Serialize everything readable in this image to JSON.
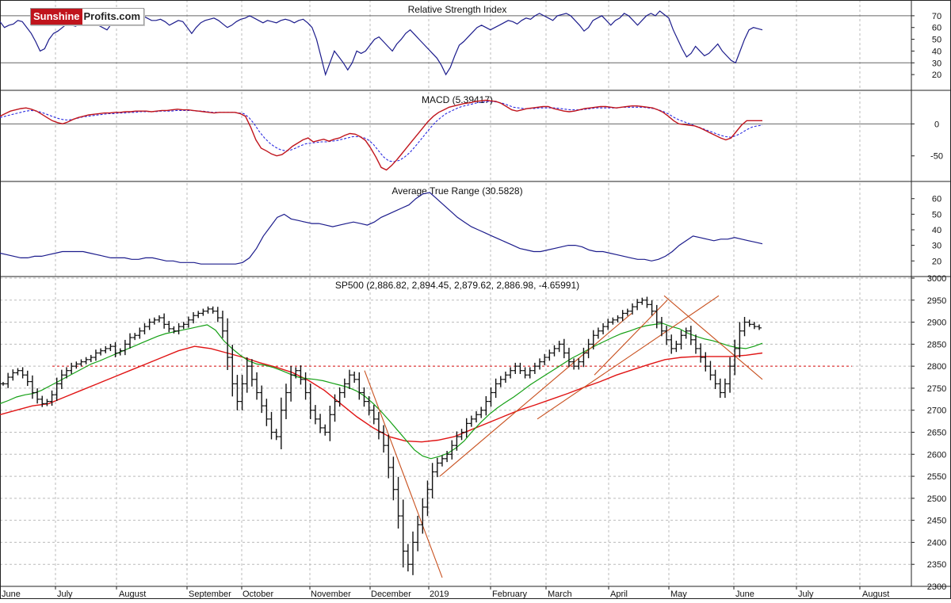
{
  "logo": {
    "part1": "Sunshine",
    "part2": "Profits.com"
  },
  "colors": {
    "price_bar": "#111111",
    "rsi_line": "#1c1c8c",
    "macd_line": "#c0141c",
    "macd_signal": "#2a2ae0",
    "atr_line": "#1c1c8c",
    "ma_fast": "#14a014",
    "ma_slow": "#e01414",
    "trendline": "#c8501e",
    "grid": "#bbbbbb"
  },
  "x_axis": {
    "labels": [
      "June",
      "July",
      "August",
      "September",
      "October",
      "November",
      "December",
      "2019",
      "February",
      "March",
      "April",
      "May",
      "June",
      "July",
      "August"
    ]
  },
  "chart_data": [
    {
      "type": "line",
      "title": "Relative Strength Index",
      "y_ticks": [
        20,
        30,
        40,
        50,
        60,
        70
      ],
      "ylim": [
        12,
        78
      ],
      "reference_lines": [
        30,
        70
      ],
      "grid": true,
      "series": [
        {
          "values": [
            65,
            60,
            62,
            63,
            66,
            65,
            60,
            55,
            48,
            40,
            42,
            50,
            55,
            57,
            60,
            63,
            62,
            61,
            65,
            68,
            66,
            64,
            62,
            60,
            58,
            63,
            66,
            65,
            62,
            65,
            68,
            72,
            70,
            68,
            66,
            66,
            67,
            65,
            62,
            64,
            66,
            65,
            60,
            55,
            60,
            64,
            66,
            67,
            68,
            66,
            63,
            60,
            62,
            65,
            67,
            68,
            70,
            68,
            66,
            64,
            66,
            65,
            64,
            66,
            67,
            66,
            64,
            66,
            67,
            64,
            60,
            50,
            35,
            20,
            30,
            40,
            35,
            30,
            24,
            30,
            40,
            38,
            40,
            45,
            50,
            52,
            48,
            44,
            40,
            46,
            50,
            55,
            58,
            54,
            50,
            46,
            42,
            38,
            34,
            28,
            20,
            26,
            36,
            45,
            48,
            52,
            56,
            60,
            62,
            60,
            58,
            60,
            62,
            64,
            66,
            65,
            63,
            66,
            68,
            67,
            70,
            72,
            70,
            68,
            66,
            70,
            71,
            72,
            70,
            66,
            62,
            57,
            60,
            66,
            68,
            70,
            66,
            62,
            66,
            68,
            72,
            70,
            66,
            62,
            66,
            70,
            72,
            70,
            74,
            71,
            68,
            58,
            50,
            42,
            35,
            38,
            44,
            40,
            36,
            38,
            42,
            46,
            40,
            36,
            32,
            30,
            40,
            50,
            58,
            60,
            59,
            58
          ]
        }
      ]
    },
    {
      "type": "line",
      "title": "MACD (5.39417)",
      "y_ticks": [
        -50,
        0
      ],
      "ylim": [
        -85,
        45
      ],
      "reference_lines": [
        0
      ],
      "grid": true,
      "series": [
        {
          "values": [
            12,
            16,
            20,
            22,
            24,
            25,
            23,
            20,
            15,
            10,
            5,
            2,
            0,
            3,
            7,
            10,
            12,
            14,
            15,
            16,
            17,
            17,
            18,
            18,
            19,
            19,
            20,
            20,
            20,
            19,
            20,
            21,
            21,
            22,
            23,
            22,
            22,
            21,
            20,
            19,
            18,
            17,
            18,
            18,
            18,
            18,
            16,
            12,
            -5,
            -25,
            -38,
            -42,
            -47,
            -50,
            -48,
            -42,
            -35,
            -30,
            -25,
            -22,
            -28,
            -26,
            -24,
            -27,
            -24,
            -22,
            -18,
            -15,
            -16,
            -20,
            -26,
            -38,
            -52,
            -68,
            -72,
            -65,
            -56,
            -46,
            -36,
            -26,
            -16,
            -6,
            4,
            12,
            18,
            22,
            26,
            28,
            30,
            32,
            33,
            35,
            36,
            37,
            36,
            35,
            32,
            27,
            22,
            20,
            22,
            24,
            25,
            26,
            27,
            27,
            24,
            22,
            20,
            19,
            20,
            22,
            24,
            25,
            26,
            27,
            27,
            26,
            25,
            26,
            27,
            28,
            28,
            27,
            26,
            25,
            22,
            18,
            12,
            5,
            0,
            -1,
            -2,
            -3,
            -6,
            -10,
            -14,
            -18,
            -22,
            -25,
            -22,
            -12,
            -2,
            5,
            5,
            5,
            5
          ]
        },
        {
          "values": [
            10,
            12,
            14,
            16,
            18,
            20,
            21,
            20,
            18,
            15,
            12,
            9,
            7,
            6,
            7,
            9,
            11,
            12,
            13,
            14,
            15,
            16,
            16,
            17,
            17,
            18,
            18,
            19,
            19,
            19,
            19,
            20,
            20,
            20,
            21,
            21,
            21,
            21,
            20,
            20,
            19,
            18,
            18,
            18,
            18,
            18,
            17,
            16,
            10,
            0,
            -12,
            -22,
            -30,
            -36,
            -40,
            -42,
            -41,
            -38,
            -34,
            -31,
            -30,
            -29,
            -28,
            -28,
            -27,
            -26,
            -24,
            -22,
            -20,
            -20,
            -21,
            -25,
            -32,
            -42,
            -52,
            -58,
            -59,
            -57,
            -52,
            -45,
            -36,
            -26,
            -16,
            -6,
            3,
            10,
            16,
            20,
            24,
            27,
            29,
            31,
            33,
            34,
            35,
            35,
            34,
            32,
            29,
            26,
            25,
            24,
            24,
            24,
            25,
            25,
            25,
            25,
            24,
            23,
            22,
            22,
            22,
            23,
            24,
            25,
            25,
            25,
            25,
            25,
            26,
            26,
            26,
            26,
            26,
            25,
            24,
            22,
            19,
            15,
            10,
            6,
            3,
            0,
            -3,
            -6,
            -9,
            -12,
            -15,
            -18,
            -20,
            -21,
            -18,
            -14,
            -9,
            -5,
            -3,
            -2
          ]
        }
      ]
    },
    {
      "type": "line",
      "title": "Average True Range (30.5828)",
      "y_ticks": [
        20,
        30,
        40,
        50,
        60
      ],
      "ylim": [
        12,
        68
      ],
      "grid": true,
      "series": [
        {
          "values": [
            25,
            24,
            23,
            22,
            22,
            23,
            23,
            24,
            25,
            26,
            26,
            26,
            26,
            25,
            24,
            23,
            22,
            22,
            22,
            21,
            21,
            22,
            22,
            21,
            20,
            20,
            19,
            19,
            19,
            18,
            18,
            18,
            18,
            18,
            18,
            19,
            22,
            28,
            36,
            42,
            48,
            50,
            47,
            46,
            45,
            44,
            44,
            43,
            42,
            43,
            44,
            45,
            44,
            43,
            45,
            48,
            50,
            52,
            54,
            56,
            60,
            63,
            64,
            60,
            56,
            52,
            48,
            45,
            42,
            40,
            38,
            36,
            34,
            32,
            30,
            28,
            27,
            26,
            26,
            27,
            28,
            29,
            30,
            30,
            29,
            27,
            26,
            26,
            25,
            24,
            23,
            22,
            21,
            21,
            20,
            21,
            23,
            26,
            30,
            33,
            36,
            35,
            34,
            33,
            34,
            34,
            35,
            34,
            33,
            32,
            31
          ]
        }
      ]
    },
    {
      "type": "line",
      "title": "SP500 (2,886.82, 2,894.45, 2,879.62, 2,886.98, -4.65991)",
      "y_ticks": [
        2300,
        2350,
        2400,
        2450,
        2500,
        2550,
        2600,
        2650,
        2700,
        2750,
        2800,
        2850,
        2900,
        2950,
        3000
      ],
      "ylim": [
        2300,
        3000
      ],
      "reference_lines": [
        2800
      ],
      "grid": true,
      "series": [
        {
          "name": "",
          "values": [
            2760,
            2775,
            2785,
            2790,
            2780,
            2765,
            2740,
            2725,
            2715,
            2720,
            2735,
            2760,
            2780,
            2790,
            2800,
            2805,
            2810,
            2815,
            2820,
            2830,
            2835,
            2840,
            2845,
            2830,
            2835,
            2850,
            2865,
            2870,
            2880,
            2890,
            2900,
            2905,
            2910,
            2895,
            2885,
            2880,
            2890,
            2895,
            2905,
            2915,
            2920,
            2925,
            2930,
            2925,
            2910,
            2880,
            2820,
            2760,
            2720,
            2760,
            2800,
            2770,
            2740,
            2710,
            2680,
            2650,
            2640,
            2700,
            2740,
            2780,
            2790,
            2770,
            2740,
            2700,
            2680,
            2660,
            2650,
            2690,
            2720,
            2740,
            2760,
            2780,
            2770,
            2740,
            2720,
            2700,
            2680,
            2650,
            2620,
            2570,
            2520,
            2460,
            2380,
            2350,
            2400,
            2440,
            2480,
            2520,
            2560,
            2580,
            2590,
            2600,
            2620,
            2640,
            2650,
            2670,
            2680,
            2690,
            2700,
            2720,
            2740,
            2760,
            2770,
            2780,
            2790,
            2800,
            2790,
            2780,
            2790,
            2800,
            2810,
            2820,
            2830,
            2840,
            2850,
            2830,
            2810,
            2800,
            2810,
            2830,
            2850,
            2870,
            2880,
            2890,
            2900,
            2905,
            2910,
            2920,
            2925,
            2935,
            2945,
            2950,
            2940,
            2925,
            2900,
            2880,
            2860,
            2840,
            2850,
            2870,
            2880,
            2860,
            2840,
            2820,
            2800,
            2780,
            2760,
            2740,
            2760,
            2800,
            2840,
            2880,
            2900,
            2895,
            2890,
            2887
          ]
        },
        {
          "name": "",
          "values": [
            2715,
            2722,
            2730,
            2735,
            2738,
            2745,
            2755,
            2765,
            2775,
            2785,
            2795,
            2805,
            2812,
            2820,
            2828,
            2836,
            2844,
            2852,
            2860,
            2868,
            2874,
            2878,
            2882,
            2886,
            2890,
            2894,
            2882,
            2858,
            2840,
            2825,
            2812,
            2805,
            2802,
            2797,
            2790,
            2782,
            2775,
            2772,
            2770,
            2767,
            2762,
            2757,
            2752,
            2744,
            2732,
            2716,
            2697,
            2676,
            2654,
            2632,
            2610,
            2596,
            2590,
            2595,
            2602,
            2614,
            2630,
            2652,
            2672,
            2690,
            2705,
            2718,
            2730,
            2744,
            2758,
            2770,
            2782,
            2794,
            2806,
            2818,
            2828,
            2838,
            2848,
            2857,
            2866,
            2874,
            2880,
            2887,
            2892,
            2895,
            2897,
            2890,
            2885,
            2875,
            2868,
            2862,
            2858,
            2852,
            2846,
            2842,
            2840,
            2845,
            2852
          ]
        },
        {
          "name": "",
          "values": [
            2690,
            2700,
            2710,
            2715,
            2730,
            2745,
            2760,
            2775,
            2790,
            2805,
            2820,
            2835,
            2845,
            2840,
            2830,
            2820,
            2808,
            2798,
            2786,
            2768,
            2745,
            2715,
            2685,
            2660,
            2640,
            2630,
            2628,
            2632,
            2640,
            2655,
            2670,
            2685,
            2700,
            2712,
            2725,
            2738,
            2752,
            2765,
            2780,
            2792,
            2804,
            2815,
            2820,
            2822,
            2822,
            2822,
            2825,
            2830
          ]
        }
      ],
      "trendlines": [
        {
          "x": [
            1,
            2
          ],
          "y": [
            2790,
            2320
          ]
        },
        {
          "x": [
            1,
            2
          ],
          "y": [
            2550,
            2920
          ]
        },
        {
          "x": [
            1,
            2
          ],
          "y": [
            2680,
            2960
          ]
        },
        {
          "x": [
            1,
            2
          ],
          "y": [
            2780,
            2950
          ]
        },
        {
          "x": [
            1,
            2
          ],
          "y": [
            2960,
            2770
          ]
        }
      ]
    }
  ]
}
